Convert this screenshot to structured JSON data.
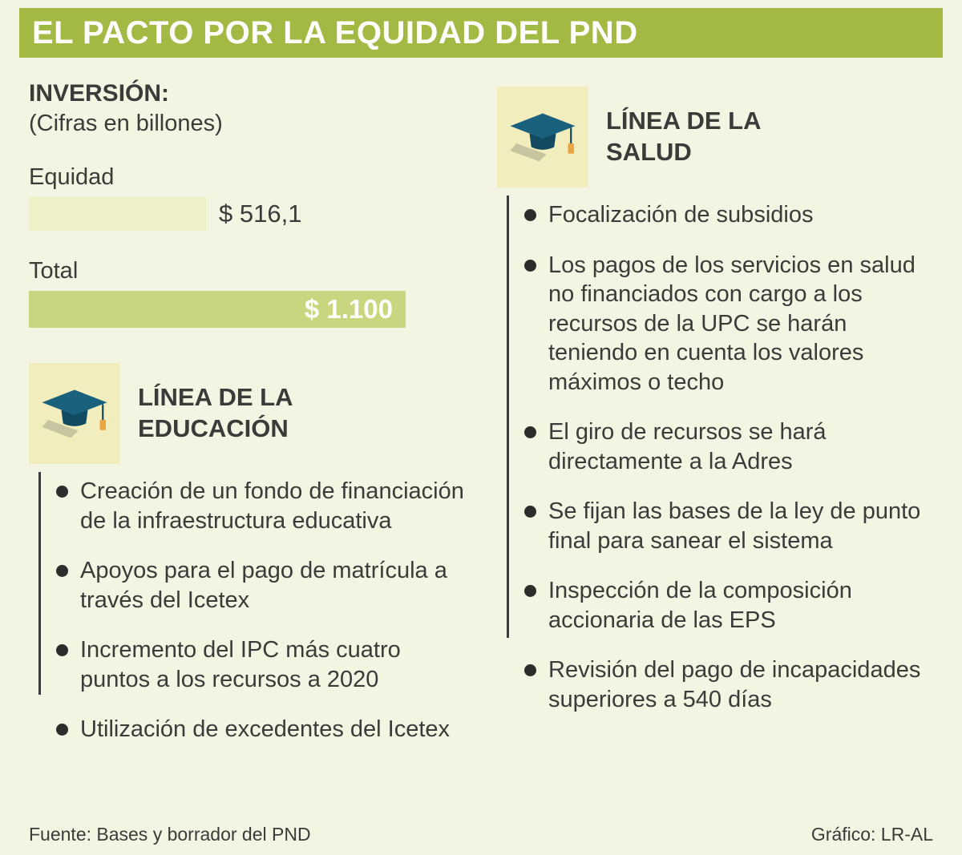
{
  "header": {
    "title": "EL PACTO POR LA EQUIDAD DEL PND"
  },
  "investment": {
    "heading": "INVERSIÓN:",
    "subheading": "(Cifras en billones)",
    "equidad_label": "Equidad",
    "equidad_value": "$ 516,1",
    "total_label": "Total",
    "total_value": "$ 1.100"
  },
  "chart_data": {
    "type": "bar",
    "orientation": "horizontal",
    "title": "INVERSIÓN: (Cifras en billones)",
    "categories": [
      "Equidad",
      "Total"
    ],
    "values": [
      516.1,
      1100
    ],
    "value_labels": [
      "$ 516,1",
      "$ 1.100"
    ],
    "xlim": [
      0,
      1100
    ],
    "grid": false,
    "legend": false
  },
  "sections": {
    "educacion": {
      "title": "LÍNEA DE LA EDUCACIÓN",
      "items": [
        "Creación de un fondo de financiación de la infraestructura educativa",
        "Apoyos para el pago de matrícula a través del Icetex",
        "Incremento del IPC más cuatro puntos a los recursos a 2020",
        "Utilización de excedentes del Icetex"
      ]
    },
    "salud": {
      "title": "LÍNEA DE LA SALUD",
      "items": [
        "Focalización de subsidios",
        "Los pagos de los servicios en salud no financiados con cargo a los recursos de la UPC se harán teniendo en cuenta los valores máximos o techo",
        "El giro de recursos se hará directamente a la Adres",
        "Se fijan las bases de la ley de punto final para sanear el sistema",
        "Inspección de la composición accionaria de las EPS",
        "Revisión del pago de incapacidades superiores a 540 días"
      ]
    }
  },
  "footer": {
    "source": "Fuente: Bases y borrador del PND",
    "credit": "Gráfico: LR-AL"
  },
  "colors": {
    "header_bg": "#a2b943",
    "page_bg": "#f4f4e2",
    "bar_pale": "#eef0c8",
    "bar_green": "#c9d67f",
    "icon_box_bg": "#f2edbd",
    "text": "#3b3b3a",
    "cap_board": "#1a617e",
    "cap_base": "#114a61",
    "tassel": "#e9a53e"
  }
}
